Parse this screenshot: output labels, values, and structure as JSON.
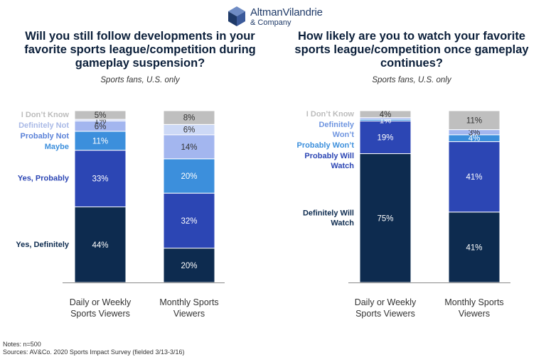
{
  "brand": {
    "name": "AltmanVilandrie",
    "sub": "& Company",
    "colors": [
      "#1f3a68",
      "#3b5a9a",
      "#6f8cc4"
    ]
  },
  "notes": "Notes: n=500",
  "sources": "Sources: AV&Co. 2020 Sports Impact Survey (fielded 3/13-3/16)",
  "chart_data": [
    {
      "type": "stacked-bar",
      "title": "Will you still follow developments in your favorite sports league/competition during gameplay suspension?",
      "subtitle": "Sports fans, U.S. only",
      "categories": [
        "Daily or Weekly Sports Viewers",
        "Monthly Sports Viewers"
      ],
      "series": [
        {
          "name": "Yes, Definitely",
          "color": "#0d2b4f",
          "label_color": "#0d2b4f",
          "values": [
            44,
            20
          ]
        },
        {
          "name": "Yes, Probably",
          "color": "#2c46b4",
          "label_color": "#2c46b4",
          "values": [
            33,
            32
          ]
        },
        {
          "name": "Maybe",
          "color": "#3c8fdc",
          "label_color": "#3c8fdc",
          "values": [
            11,
            20
          ]
        },
        {
          "name": "Probably Not",
          "color": "#a3b6ef",
          "label_color": "#5b82d8",
          "values": [
            6,
            14
          ]
        },
        {
          "name": "Definitely Not",
          "color": "#cdd9f6",
          "label_color": "#a9b9e6",
          "values": [
            1,
            6
          ]
        },
        {
          "name": "I Don’t Know",
          "color": "#bfbfbf",
          "label_color": "#bcbcbc",
          "values": [
            5,
            8
          ]
        }
      ],
      "value_labels": [
        [
          "44%",
          "33%",
          "11%",
          "6%",
          "1%",
          "5%"
        ],
        [
          "20%",
          "32%",
          "20%",
          "14%",
          "6%",
          "8%"
        ]
      ]
    },
    {
      "type": "stacked-bar",
      "title": "How likely are you to watch your favorite sports league/competition once gameplay continues?",
      "subtitle": "Sports fans, U.S. only",
      "categories": [
        "Daily or Weekly Sports Viewers",
        "Monthly Sports Viewers"
      ],
      "series": [
        {
          "name": "Definitely Will Watch",
          "color": "#0d2b4f",
          "label_color": "#0d2b4f",
          "values": [
            75,
            41
          ]
        },
        {
          "name": "Probably Will Watch",
          "color": "#2c46b4",
          "label_color": "#2c46b4",
          "values": [
            19,
            41
          ]
        },
        {
          "name": "Probably Won’t",
          "color": "#3c8fdc",
          "label_color": "#3c8fdc",
          "values": [
            1,
            4
          ]
        },
        {
          "name": "Definitely Won’t",
          "color": "#a3b6ef",
          "label_color": "#6f95e0",
          "values": [
            1,
            3
          ]
        },
        {
          "name": "I Don’t Know",
          "color": "#bfbfbf",
          "label_color": "#bcbcbc",
          "values": [
            4,
            11
          ]
        }
      ],
      "value_labels": [
        [
          "75%",
          "19%",
          "1%",
          "",
          "4%"
        ],
        [
          "41%",
          "41%",
          "4%",
          "3%",
          "11%"
        ]
      ]
    }
  ]
}
